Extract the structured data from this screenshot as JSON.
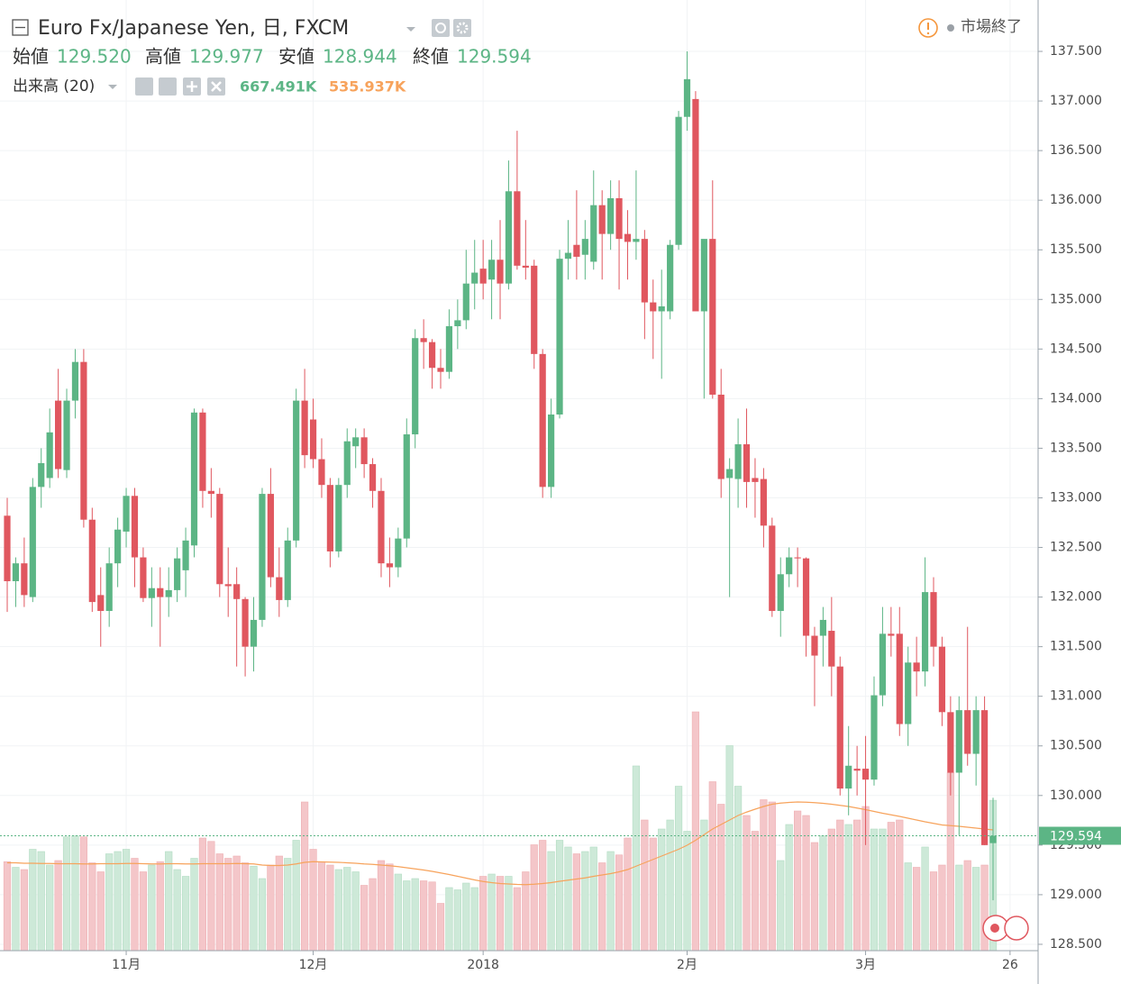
{
  "chart_data": {
    "type": "candlestick",
    "title": "Euro Fx/Japanese Yen, 日, FXCM",
    "status": "市場終了",
    "ohlc_legend": [
      {
        "label": "始値",
        "value": "129.520"
      },
      {
        "label": "高値",
        "value": "129.977"
      },
      {
        "label": "安値",
        "value": "128.944"
      },
      {
        "label": "終値",
        "value": "129.594"
      }
    ],
    "volume_legend": {
      "label": "出来高 (20)",
      "value": "667.491K",
      "ma_value": "535.937K"
    },
    "up_color": "#5cb585",
    "down_color": "#e0575f",
    "up_volume_color": "#cde9d8",
    "down_volume_color": "#f4c6c9",
    "volume_ma_color": "#f7a35c",
    "grid": true,
    "xlim": [
      -0.85,
      121.3
    ],
    "ylim": [
      128.436,
      138.018
    ],
    "xticks": [
      {
        "value": 14,
        "label": "11月"
      },
      {
        "value": 36,
        "label": "12月"
      },
      {
        "value": 56,
        "label": "2018"
      },
      {
        "value": 80,
        "label": "2月"
      },
      {
        "value": 101,
        "label": "3月"
      },
      {
        "value": 118,
        "label": "26"
      }
    ],
    "yticks": [
      {
        "value": 128.5,
        "label": "128.500"
      },
      {
        "value": 129,
        "label": "129.000"
      },
      {
        "value": 129.5,
        "label": "129.500"
      },
      {
        "value": 130,
        "label": "130.000"
      },
      {
        "value": 130.5,
        "label": "130.500"
      },
      {
        "value": 131,
        "label": "131.000"
      },
      {
        "value": 131.5,
        "label": "131.500"
      },
      {
        "value": 132,
        "label": "132.000"
      },
      {
        "value": 132.5,
        "label": "132.500"
      },
      {
        "value": 133,
        "label": "133.000"
      },
      {
        "value": 133.5,
        "label": "133.500"
      },
      {
        "value": 134,
        "label": "134.000"
      },
      {
        "value": 134.5,
        "label": "134.500"
      },
      {
        "value": 135,
        "label": "135.000"
      },
      {
        "value": 135.5,
        "label": "135.500"
      },
      {
        "value": 136,
        "label": "136.000"
      },
      {
        "value": 136.5,
        "label": "136.500"
      },
      {
        "value": 137,
        "label": "137.000"
      },
      {
        "value": 137.5,
        "label": "137.500"
      }
    ],
    "open": [
      132.82,
      132.16,
      132.34,
      132.0,
      133.11,
      133.2,
      133.98,
      133.28,
      133.98,
      134.37,
      132.78,
      132.02,
      131.86,
      132.34,
      132.66,
      133.02,
      132.4,
      131.99,
      132.09,
      132.0,
      132.07,
      132.27,
      132.52,
      133.86,
      133.07,
      133.04,
      132.13,
      132.13,
      131.98,
      131.5,
      131.77,
      133.04,
      132.2,
      131.97,
      132.57,
      133.98,
      133.79,
      133.39,
      133.13,
      132.46,
      133.13,
      133.52,
      133.61,
      133.34,
      133.07,
      132.34,
      132.3,
      132.59,
      133.64,
      134.61,
      134.57,
      134.31,
      134.27,
      134.73,
      134.79,
      135.16,
      135.31,
      135.2,
      135.4,
      135.16,
      136.09,
      135.34,
      135.34,
      134.45,
      133.11,
      133.84,
      135.41,
      135.55,
      135.45,
      135.38,
      135.95,
      135.66,
      136.02,
      135.66,
      135.58,
      135.61,
      134.97,
      134.88,
      134.88,
      135.55,
      136.84,
      137.02,
      134.88,
      135.61,
      134.04,
      133.2,
      133.19,
      133.54,
      133.2,
      133.19,
      132.72,
      131.86,
      132.23,
      132.4,
      132.39,
      131.61,
      131.61,
      131.66,
      131.3,
      130.07,
      130.27,
      130.27,
      130.16,
      131.01,
      131.63,
      131.63,
      130.72,
      131.34,
      131.25,
      132.05,
      131.5,
      130.84,
      130.23,
      130.86,
      130.42,
      130.86,
      129.52
    ],
    "high": [
      133.0,
      132.4,
      132.6,
      133.2,
      133.5,
      133.9,
      134.3,
      134.1,
      134.5,
      134.5,
      132.9,
      132.3,
      132.5,
      132.8,
      133.1,
      133.1,
      132.5,
      132.3,
      132.3,
      132.3,
      132.5,
      132.7,
      133.9,
      133.9,
      133.3,
      133.1,
      132.5,
      132.3,
      132.0,
      132.0,
      133.1,
      133.3,
      132.5,
      132.7,
      134.1,
      134.3,
      134.0,
      133.6,
      133.2,
      133.2,
      133.7,
      133.7,
      133.7,
      133.4,
      133.2,
      132.6,
      132.7,
      133.8,
      134.7,
      134.8,
      134.6,
      134.5,
      134.9,
      135.0,
      135.5,
      135.6,
      135.6,
      135.6,
      135.8,
      136.4,
      136.7,
      135.8,
      135.4,
      134.5,
      134.0,
      135.5,
      135.8,
      136.1,
      135.8,
      136.3,
      136.1,
      136.2,
      136.2,
      135.9,
      136.3,
      135.7,
      135.2,
      135.3,
      135.6,
      136.9,
      137.5,
      137.1,
      135.6,
      136.2,
      134.3,
      133.4,
      133.8,
      133.9,
      133.4,
      133.3,
      132.8,
      132.4,
      132.5,
      132.5,
      132.4,
      131.7,
      131.9,
      132.0,
      131.4,
      130.7,
      130.5,
      130.6,
      131.2,
      131.9,
      131.9,
      131.9,
      131.5,
      131.6,
      132.4,
      132.2,
      131.6,
      131.0,
      131.0,
      131.7,
      131.0,
      131.0,
      129.977
    ],
    "low": [
      131.85,
      131.9,
      131.9,
      131.95,
      132.9,
      133.1,
      133.2,
      133.2,
      133.8,
      132.7,
      131.85,
      131.5,
      131.7,
      132.1,
      132.5,
      132.1,
      131.95,
      131.7,
      131.5,
      131.8,
      131.95,
      132.0,
      132.4,
      132.9,
      132.8,
      132.0,
      131.8,
      131.3,
      131.2,
      131.25,
      131.7,
      132.1,
      131.8,
      131.9,
      132.5,
      133.3,
      133.3,
      133.0,
      132.3,
      132.4,
      133.0,
      133.3,
      133.2,
      132.9,
      132.2,
      132.1,
      132.2,
      132.5,
      133.5,
      134.3,
      134.1,
      134.1,
      134.2,
      134.5,
      134.7,
      134.9,
      135.0,
      134.8,
      134.8,
      135.1,
      135.3,
      135.2,
      134.3,
      133.0,
      133.0,
      133.8,
      135.2,
      135.2,
      135.2,
      135.3,
      135.2,
      135.5,
      135.1,
      135.2,
      135.4,
      134.6,
      134.4,
      134.2,
      134.8,
      135.5,
      136.7,
      134.9,
      134.0,
      134.0,
      133.0,
      132.0,
      132.9,
      132.9,
      132.8,
      132.5,
      131.8,
      131.6,
      132.1,
      132.1,
      131.4,
      130.9,
      131.3,
      131.0,
      130.0,
      129.8,
      130.0,
      129.5,
      130.1,
      130.9,
      131.4,
      130.6,
      130.5,
      131.0,
      131.1,
      131.3,
      130.7,
      130.0,
      129.6,
      130.3,
      130.1,
      129.5,
      128.944
    ],
    "close": [
      132.16,
      132.34,
      132.02,
      133.11,
      133.35,
      133.66,
      133.29,
      133.98,
      134.37,
      132.78,
      131.95,
      131.86,
      132.34,
      132.68,
      133.02,
      132.4,
      131.99,
      132.09,
      132.0,
      132.07,
      132.39,
      132.57,
      133.86,
      133.07,
      133.04,
      132.13,
      132.11,
      131.98,
      131.5,
      131.77,
      133.04,
      132.2,
      131.97,
      132.57,
      133.98,
      133.43,
      133.39,
      133.13,
      132.46,
      133.13,
      133.57,
      133.61,
      133.34,
      133.07,
      132.34,
      132.3,
      132.59,
      133.64,
      134.61,
      134.57,
      134.31,
      134.27,
      134.73,
      134.79,
      135.16,
      135.27,
      135.16,
      135.4,
      135.16,
      136.09,
      135.34,
      135.32,
      134.45,
      133.11,
      133.84,
      135.41,
      135.47,
      135.43,
      135.61,
      135.95,
      135.66,
      136.02,
      135.61,
      135.58,
      135.61,
      134.97,
      134.88,
      134.93,
      135.55,
      136.84,
      137.22,
      134.88,
      135.61,
      134.04,
      133.19,
      133.29,
      133.54,
      133.16,
      133.16,
      132.72,
      131.86,
      132.23,
      132.4,
      132.39,
      131.61,
      131.41,
      131.77,
      131.3,
      130.07,
      130.3,
      130.25,
      130.16,
      131.01,
      131.63,
      131.61,
      130.72,
      131.34,
      131.25,
      132.05,
      131.5,
      130.84,
      130.23,
      130.86,
      130.42,
      130.86,
      129.5,
      129.594
    ],
    "volume": [
      395,
      370,
      360,
      450,
      440,
      380,
      400,
      505,
      510,
      505,
      390,
      350,
      430,
      440,
      450,
      410,
      350,
      380,
      395,
      440,
      360,
      330,
      410,
      500,
      485,
      430,
      410,
      420,
      390,
      375,
      320,
      380,
      420,
      410,
      490,
      660,
      450,
      395,
      380,
      360,
      370,
      350,
      290,
      320,
      400,
      385,
      340,
      310,
      320,
      310,
      305,
      210,
      280,
      270,
      300,
      280,
      330,
      340,
      330,
      330,
      280,
      350,
      470,
      490,
      440,
      490,
      460,
      430,
      440,
      460,
      390,
      440,
      425,
      500,
      820,
      580,
      500,
      540,
      580,
      730,
      530,
      1060,
      580,
      750,
      650,
      910,
      730,
      600,
      530,
      670,
      660,
      400,
      560,
      620,
      600,
      480,
      510,
      540,
      580,
      560,
      580,
      640,
      540,
      540,
      570,
      580,
      390,
      370,
      460,
      350,
      380,
      790,
      380,
      400,
      370,
      380,
      667.491
    ],
    "volume_ma": [
      390,
      390,
      388,
      388,
      387,
      387,
      386,
      386,
      386,
      385,
      385,
      386,
      386,
      386,
      387,
      387,
      386,
      385,
      385,
      386,
      386,
      385,
      385,
      386,
      386,
      386,
      386,
      387,
      386,
      385,
      380,
      378,
      378,
      380,
      385,
      392,
      395,
      394,
      393,
      392,
      390,
      388,
      385,
      383,
      380,
      377,
      373,
      368,
      363,
      358,
      352,
      345,
      338,
      330,
      322,
      314,
      307,
      302,
      298,
      296,
      294,
      293,
      295,
      298,
      302,
      308,
      313,
      318,
      323,
      330,
      336,
      342,
      350,
      360,
      375,
      390,
      405,
      420,
      435,
      450,
      468,
      490,
      515,
      540,
      560,
      580,
      600,
      615,
      628,
      640,
      650,
      655,
      658,
      660,
      659,
      657,
      654,
      650,
      645,
      640,
      633,
      626,
      618,
      610,
      603,
      596,
      588,
      580,
      572,
      565,
      558,
      555,
      552,
      548,
      544,
      540,
      535.937
    ]
  }
}
